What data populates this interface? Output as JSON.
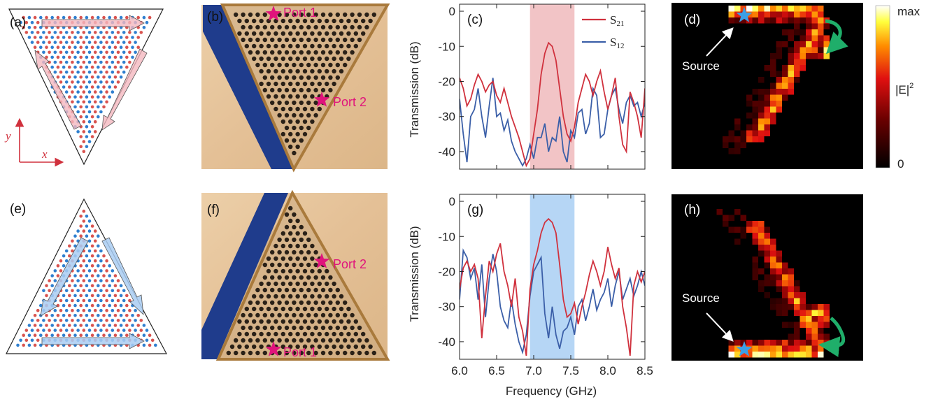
{
  "panels": {
    "a": "(a)",
    "b": "(b)",
    "c": "(c)",
    "d": "(d)",
    "e": "(e)",
    "f": "(f)",
    "g": "(g)",
    "h": "(h)"
  },
  "axes_schematic": {
    "x": "x",
    "y": "y"
  },
  "ports": {
    "b": {
      "port1": "Port 1",
      "port2": "Port 2"
    },
    "f": {
      "port1": "Port 1",
      "port2": "Port 2"
    }
  },
  "field_maps": {
    "source_label": "Source",
    "colorbar": {
      "max": "max",
      "min": "0",
      "label": "|E|",
      "label_sup": "2"
    }
  },
  "colors": {
    "s21": "#d0313d",
    "s12": "#3b5fa8",
    "band_c": "#f2c4c6",
    "band_g": "#b6d6f5",
    "port_star": "#e0147c",
    "source_star": "#3ba0e6",
    "arrow_green": "#1fae6a",
    "dot_red": "#d9534f",
    "dot_blue": "#2f7fcf"
  },
  "chart_data": [
    {
      "type": "line",
      "panel": "c",
      "xlabel": "",
      "ylabel": "Transmission (dB)",
      "xlim": [
        6.0,
        8.5
      ],
      "ylim": [
        -45,
        2
      ],
      "yticks": [
        "0",
        "-10",
        "-20",
        "-30",
        "-40"
      ],
      "band": [
        6.95,
        7.55
      ],
      "legend": {
        "position": "top-right",
        "entries": [
          "S21",
          "S12"
        ]
      },
      "series": [
        {
          "name": "S21",
          "x": [
            6.0,
            6.05,
            6.1,
            6.15,
            6.2,
            6.25,
            6.3,
            6.35,
            6.4,
            6.45,
            6.5,
            6.55,
            6.6,
            6.65,
            6.7,
            6.75,
            6.8,
            6.85,
            6.9,
            6.95,
            7.0,
            7.05,
            7.1,
            7.15,
            7.2,
            7.25,
            7.3,
            7.35,
            7.4,
            7.45,
            7.5,
            7.55,
            7.6,
            7.65,
            7.7,
            7.75,
            7.8,
            7.85,
            7.9,
            7.95,
            8.0,
            8.05,
            8.1,
            8.15,
            8.2,
            8.25,
            8.3,
            8.35,
            8.4,
            8.45,
            8.5
          ],
          "y": [
            -19,
            -22,
            -27,
            -25,
            -21,
            -18,
            -20,
            -23,
            -21,
            -20,
            -24,
            -26,
            -22,
            -26,
            -30,
            -33,
            -36,
            -40,
            -44,
            -42,
            -35,
            -28,
            -18,
            -12,
            -9,
            -10,
            -14,
            -22,
            -30,
            -35,
            -37,
            -33,
            -26,
            -22,
            -18,
            -20,
            -24,
            -20,
            -17,
            -23,
            -28,
            -24,
            -19,
            -30,
            -38,
            -40,
            -23,
            -26,
            -30,
            -36,
            -22
          ]
        },
        {
          "name": "S12",
          "x": [
            6.0,
            6.05,
            6.1,
            6.15,
            6.2,
            6.25,
            6.3,
            6.35,
            6.4,
            6.45,
            6.5,
            6.55,
            6.6,
            6.65,
            6.7,
            6.75,
            6.8,
            6.85,
            6.9,
            6.95,
            7.0,
            7.05,
            7.1,
            7.15,
            7.2,
            7.25,
            7.3,
            7.35,
            7.4,
            7.45,
            7.5,
            7.55,
            7.6,
            7.65,
            7.7,
            7.75,
            7.8,
            7.85,
            7.9,
            7.95,
            8.0,
            8.05,
            8.1,
            8.15,
            8.2,
            8.25,
            8.3,
            8.35,
            8.4,
            8.45,
            8.5
          ],
          "y": [
            -25,
            -35,
            -43,
            -30,
            -28,
            -22,
            -30,
            -36,
            -27,
            -19,
            -30,
            -29,
            -34,
            -31,
            -37,
            -40,
            -42,
            -44,
            -42,
            -38,
            -42,
            -36,
            -36,
            -32,
            -40,
            -36,
            -37,
            -30,
            -40,
            -43,
            -34,
            -36,
            -29,
            -28,
            -35,
            -32,
            -22,
            -24,
            -36,
            -35,
            -28,
            -24,
            -22,
            -28,
            -32,
            -26,
            -24,
            -27,
            -26,
            -30,
            -26
          ]
        }
      ]
    },
    {
      "type": "line",
      "panel": "g",
      "xlabel": "Frequency (GHz)",
      "ylabel": "Transmission (dB)",
      "xlim": [
        6.0,
        8.5
      ],
      "ylim": [
        -45,
        2
      ],
      "xticks": [
        "6.0",
        "6.5",
        "7.0",
        "7.5",
        "8.0",
        "8.5"
      ],
      "yticks": [
        "0",
        "-10",
        "-20",
        "-30",
        "-40"
      ],
      "band": [
        6.95,
        7.55
      ],
      "series": [
        {
          "name": "S21",
          "x": [
            6.0,
            6.05,
            6.1,
            6.15,
            6.2,
            6.25,
            6.3,
            6.35,
            6.4,
            6.45,
            6.5,
            6.55,
            6.6,
            6.65,
            6.7,
            6.75,
            6.8,
            6.85,
            6.9,
            6.95,
            7.0,
            7.05,
            7.1,
            7.15,
            7.2,
            7.25,
            7.3,
            7.35,
            7.4,
            7.45,
            7.5,
            7.55,
            7.6,
            7.65,
            7.7,
            7.75,
            7.8,
            7.85,
            7.9,
            7.95,
            8.0,
            8.05,
            8.1,
            8.15,
            8.2,
            8.25,
            8.3,
            8.35,
            8.4,
            8.45,
            8.5
          ],
          "y": [
            -25,
            -19,
            -17,
            -20,
            -18,
            -22,
            -39,
            -27,
            -17,
            -20,
            -15,
            -12,
            -20,
            -24,
            -30,
            -22,
            -33,
            -37,
            -44,
            -25,
            -18,
            -14,
            -9,
            -6,
            -5,
            -6,
            -9,
            -18,
            -28,
            -33,
            -32,
            -29,
            -35,
            -30,
            -26,
            -21,
            -17,
            -20,
            -24,
            -20,
            -13,
            -18,
            -22,
            -19,
            -30,
            -36,
            -44,
            -24,
            -20,
            -23,
            -20
          ]
        },
        {
          "name": "S12",
          "x": [
            6.0,
            6.05,
            6.1,
            6.15,
            6.2,
            6.25,
            6.3,
            6.35,
            6.4,
            6.45,
            6.5,
            6.55,
            6.6,
            6.65,
            6.7,
            6.75,
            6.8,
            6.85,
            6.9,
            6.95,
            7.0,
            7.05,
            7.1,
            7.15,
            7.2,
            7.25,
            7.3,
            7.35,
            7.4,
            7.45,
            7.5,
            7.55,
            7.6,
            7.65,
            7.7,
            7.75,
            7.8,
            7.85,
            7.9,
            7.95,
            8.0,
            8.05,
            8.1,
            8.15,
            8.2,
            8.25,
            8.3,
            8.35,
            8.4,
            8.45,
            8.5
          ],
          "y": [
            -28,
            -14,
            -16,
            -22,
            -19,
            -28,
            -18,
            -33,
            -22,
            -15,
            -20,
            -30,
            -34,
            -36,
            -28,
            -35,
            -40,
            -43,
            -38,
            -27,
            -20,
            -18,
            -16,
            -32,
            -39,
            -30,
            -38,
            -42,
            -37,
            -36,
            -33,
            -38,
            -30,
            -28,
            -34,
            -30,
            -25,
            -31,
            -28,
            -26,
            -22,
            -30,
            -24,
            -20,
            -28,
            -25,
            -22,
            -27,
            -24,
            -20,
            -24
          ]
        }
      ]
    }
  ]
}
